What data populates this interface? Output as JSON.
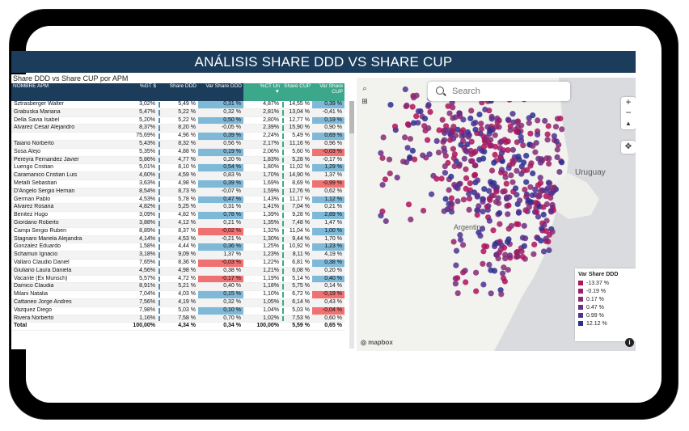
{
  "header": {
    "title": "ANÁLISIS SHARE DDD VS SHARE CUP"
  },
  "table": {
    "subtitle": "Share DDD vs Share CUP por APM",
    "columns": [
      "NOMBRE APM",
      "%GT $",
      "Share DDD",
      "Var Share DDD",
      "%CT Un",
      "Share CUP",
      "Var Share CUP"
    ],
    "sort_indicator": "▼",
    "rows": [
      [
        "Sztrasberger Walter",
        "3,02%",
        "5,49 %",
        "0,31 %",
        "4,87%",
        "14,55 %",
        "0,39 %"
      ],
      [
        "Grabuska Mariana",
        "5,47%",
        "5,22 %",
        "0,32 %",
        "2,81%",
        "13,04 %",
        "-0,41 %"
      ],
      [
        "Della Savia Isabel",
        "5,20%",
        "5,22 %",
        "0,50 %",
        "2,80%",
        "12,77 %",
        "0,19 %"
      ],
      [
        "Alvarez Cesar Alejandro",
        "8,37%",
        "8,20 %",
        "-0,05 %",
        "2,39%",
        "15,90 %",
        "0,90 %"
      ],
      [
        "",
        "75,69%",
        "4,96 %",
        "0,39 %",
        "2,24%",
        "5,49 %",
        "0,69 %"
      ],
      [
        "Taiano Norberto",
        "5,43%",
        "8,32 %",
        "0,56 %",
        "2,17%",
        "11,16 %",
        "0,96 %"
      ],
      [
        "Sosa Alejo",
        "5,35%",
        "4,88 %",
        "0,19 %",
        "2,06%",
        "5,60 %",
        "-0,03 %"
      ],
      [
        "Pereyra Fernandez Javier",
        "5,86%",
        "4,77 %",
        "0,20 %",
        "1,83%",
        "5,28 %",
        "-0,17 %"
      ],
      [
        "Luengo Cristian",
        "5,01%",
        "8,10 %",
        "0,54 %",
        "1,80%",
        "11,02 %",
        "1,29 %"
      ],
      [
        "Caramanico Cristian Luis",
        "4,60%",
        "4,59 %",
        "0,83 %",
        "1,70%",
        "14,90 %",
        "1,37 %"
      ],
      [
        "Metalli Sebastian",
        "3,63%",
        "4,98 %",
        "0,39 %",
        "1,69%",
        "8,69 %",
        "-0,99 %"
      ],
      [
        "D'Angelo Sergio Hernan",
        "8,54%",
        "8,73 %",
        "-0,07 %",
        "1,59%",
        "12,76 %",
        "0,62 %"
      ],
      [
        "German Pablo",
        "4,53%",
        "5,78 %",
        "0,47 %",
        "1,43%",
        "11,17 %",
        "1,12 %"
      ],
      [
        "Alvarez Rosana",
        "4,82%",
        "5,25 %",
        "0,31 %",
        "1,41%",
        "7,04 %",
        "0,21 %"
      ],
      [
        "Benitez Hugo",
        "3,09%",
        "4,82 %",
        "0,78 %",
        "1,39%",
        "9,28 %",
        "2,89 %"
      ],
      [
        "Giordano Roberto",
        "3,88%",
        "4,12 %",
        "0,21 %",
        "1,35%",
        "7,48 %",
        "1,47 %"
      ],
      [
        "Campi Sergio Ruben",
        "8,89%",
        "8,37 %",
        "-0,02 %",
        "1,32%",
        "11,04 %",
        "1,00 %"
      ],
      [
        "Stagnaro Mariela Alejandra",
        "4,14%",
        "4,53 %",
        "-0,21 %",
        "1,30%",
        "9,44 %",
        "1,70 %"
      ],
      [
        "Gonzalez Eduardo",
        "1,58%",
        "4,44 %",
        "0,36 %",
        "1,25%",
        "10,92 %",
        "1,23 %"
      ],
      [
        "Schamun Ignacio",
        "3,18%",
        "9,09 %",
        "1,37 %",
        "1,23%",
        "8,11 %",
        "4,19 %"
      ],
      [
        "Vallaro Claudio Daniel",
        "7,65%",
        "8,36 %",
        "-0,03 %",
        "1,22%",
        "6,81 %",
        "0,38 %"
      ],
      [
        "Giuliano Laura Daniela",
        "4,56%",
        "4,98 %",
        "0,38 %",
        "1,21%",
        "6,08 %",
        "0,20 %"
      ],
      [
        "Vacante (Ex Munsch)",
        "5,57%",
        "4,72 %",
        "-0,17 %",
        "1,19%",
        "5,14 %",
        "0,40 %"
      ],
      [
        "Damico Claudia",
        "8,91%",
        "5,21 %",
        "0,40 %",
        "1,18%",
        "5,75 %",
        "0,14 %"
      ],
      [
        "Milani Natalia",
        "7,04%",
        "4,03 %",
        "0,15 %",
        "1,10%",
        "6,72 %",
        "-0,19 %"
      ],
      [
        "Cattaneo Jorge Andres",
        "7,56%",
        "4,19 %",
        "0,32 %",
        "1,05%",
        "6,14 %",
        "0,43 %"
      ],
      [
        "Vazquez Diego",
        "7,98%",
        "5,03 %",
        "0,10 %",
        "1,04%",
        "5,03 %",
        "-0,04 %"
      ],
      [
        "Rivera Norberto",
        "1,16%",
        "7,58 %",
        "0,70 %",
        "1,02%",
        "7,53 %",
        "0,60 %"
      ]
    ],
    "total": [
      "Total",
      "100,00%",
      "4,34 %",
      "0,34 %",
      "100,00%",
      "5,59 %",
      "0,65 %"
    ]
  },
  "map": {
    "search_placeholder": "Search",
    "labels": {
      "uruguay": "Uruguay",
      "argentina": "Argentina"
    },
    "attribution": "mapbox",
    "info": "i",
    "zoom_in": "+",
    "zoom_out": "−",
    "reset": "▲",
    "legend": {
      "title": "Var Share DDD",
      "items": [
        {
          "label": "-13.37 %",
          "color": "#b0135a"
        },
        {
          "label": "-0.19 %",
          "color": "#9c1f66"
        },
        {
          "label": "0.17 %",
          "color": "#862b73"
        },
        {
          "label": "0.47 %",
          "color": "#6a2e82"
        },
        {
          "label": "0.99 %",
          "color": "#4d3391"
        },
        {
          "label": "12.12 %",
          "color": "#2c2f8f"
        }
      ]
    }
  }
}
